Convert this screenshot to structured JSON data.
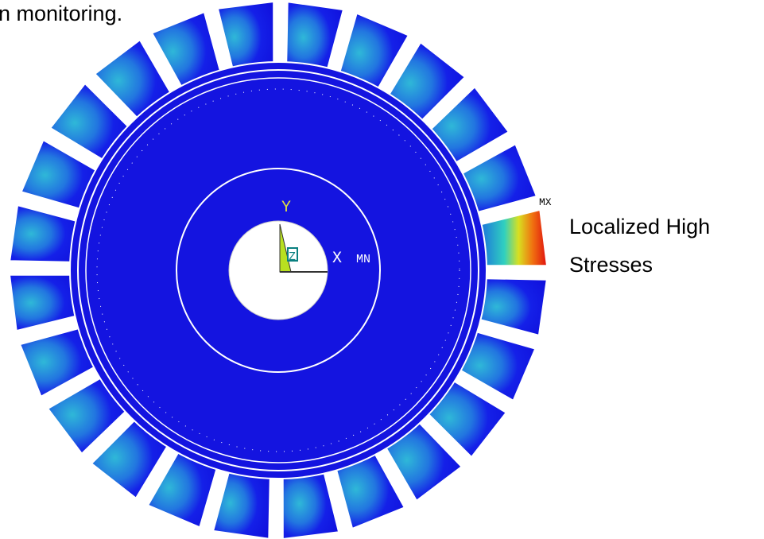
{
  "caption_fragment": "n monitoring.",
  "annotation": {
    "line1": "Localized High",
    "line2": "Stresses"
  },
  "triad": {
    "y_axis": "Y",
    "x_axis": "X",
    "z_axis": "Z",
    "min_marker": "MN",
    "max_marker": "MX"
  }
}
